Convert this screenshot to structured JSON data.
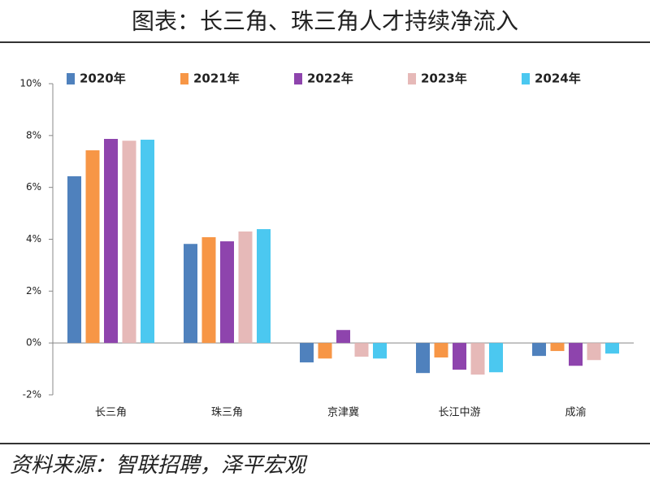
{
  "chart_data": {
    "type": "bar",
    "title": "图表：长三角、珠三角人才持续净流入",
    "categories": [
      "长三角",
      "珠三角",
      "京津冀",
      "长江中游",
      "成渝"
    ],
    "series": [
      {
        "name": "2020年",
        "color": "#4f81bd",
        "values": [
          6.43,
          3.82,
          -0.75,
          -1.16,
          -0.5
        ]
      },
      {
        "name": "2021年",
        "color": "#f79646",
        "values": [
          7.43,
          4.08,
          -0.6,
          -0.56,
          -0.31
        ]
      },
      {
        "name": "2022年",
        "color": "#8e44ad",
        "values": [
          7.87,
          3.92,
          0.5,
          -1.03,
          -0.88
        ]
      },
      {
        "name": "2023年",
        "color": "#e6b9b8",
        "values": [
          7.8,
          4.3,
          -0.53,
          -1.22,
          -0.66
        ]
      },
      {
        "name": "2024年",
        "color": "#4bc8f0",
        "values": [
          7.84,
          4.39,
          -0.6,
          -1.13,
          -0.41
        ]
      }
    ],
    "ylim": [
      -2,
      10
    ],
    "yticks": [
      {
        "value": -2,
        "label": "-2%"
      },
      {
        "value": 0,
        "label": "0%"
      },
      {
        "value": 2,
        "label": "2%"
      },
      {
        "value": 4,
        "label": "4%"
      },
      {
        "value": 6,
        "label": "6%"
      },
      {
        "value": 8,
        "label": "8%"
      },
      {
        "value": 10,
        "label": "10%"
      }
    ],
    "legend": "top",
    "source": "资料来源：智联招聘，泽平宏观"
  }
}
